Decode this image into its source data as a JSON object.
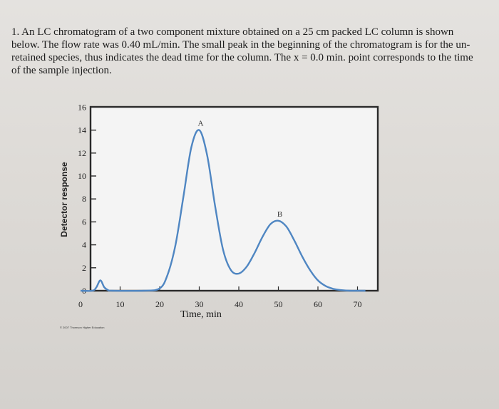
{
  "question": {
    "text": "1. An LC chromatogram of a two component mixture obtained on a 25 cm packed LC column is shown below. The flow rate was 0.40 mL/min. The small peak in the beginning of the chromatogram is for the un-retained species, thus indicates the dead time for the column. The x = 0.0 min. point corresponds to the time of the sample injection."
  },
  "copyright": "© 2007 Thomson Higher Education",
  "chart_data": {
    "type": "line",
    "title": "",
    "xlabel_line1": "Time, min",
    "ylabel": "Detector response",
    "xlim": [
      0,
      72
    ],
    "ylim": [
      0,
      16
    ],
    "x_ticks": [
      0,
      10,
      20,
      30,
      40,
      50,
      60,
      70
    ],
    "y_ticks": [
      0,
      2,
      4,
      6,
      8,
      10,
      12,
      14,
      16
    ],
    "grid": false,
    "series": [
      {
        "x": [
          0,
          3,
          4,
          5,
          6,
          7,
          8,
          16,
          20,
          22,
          24,
          26,
          28,
          30,
          32,
          34,
          36,
          38,
          40,
          42,
          44,
          46,
          48,
          50,
          52,
          54,
          56,
          58,
          60,
          62,
          64,
          66,
          68,
          70,
          72
        ],
        "y": [
          0,
          0,
          0.3,
          0.9,
          0.3,
          0.05,
          0,
          0,
          0.2,
          1.4,
          4.0,
          8.2,
          12.5,
          14.0,
          11.8,
          7.4,
          3.6,
          1.8,
          1.5,
          2.1,
          3.3,
          4.7,
          5.8,
          6.1,
          5.6,
          4.4,
          3.0,
          1.8,
          0.9,
          0.4,
          0.15,
          0.05,
          0,
          0,
          0
        ],
        "color": "#4f86c2"
      }
    ],
    "peaks": [
      {
        "label": "A",
        "x": 30,
        "y": 14.0
      },
      {
        "label": "B",
        "x": 50,
        "y": 6.1
      }
    ]
  }
}
